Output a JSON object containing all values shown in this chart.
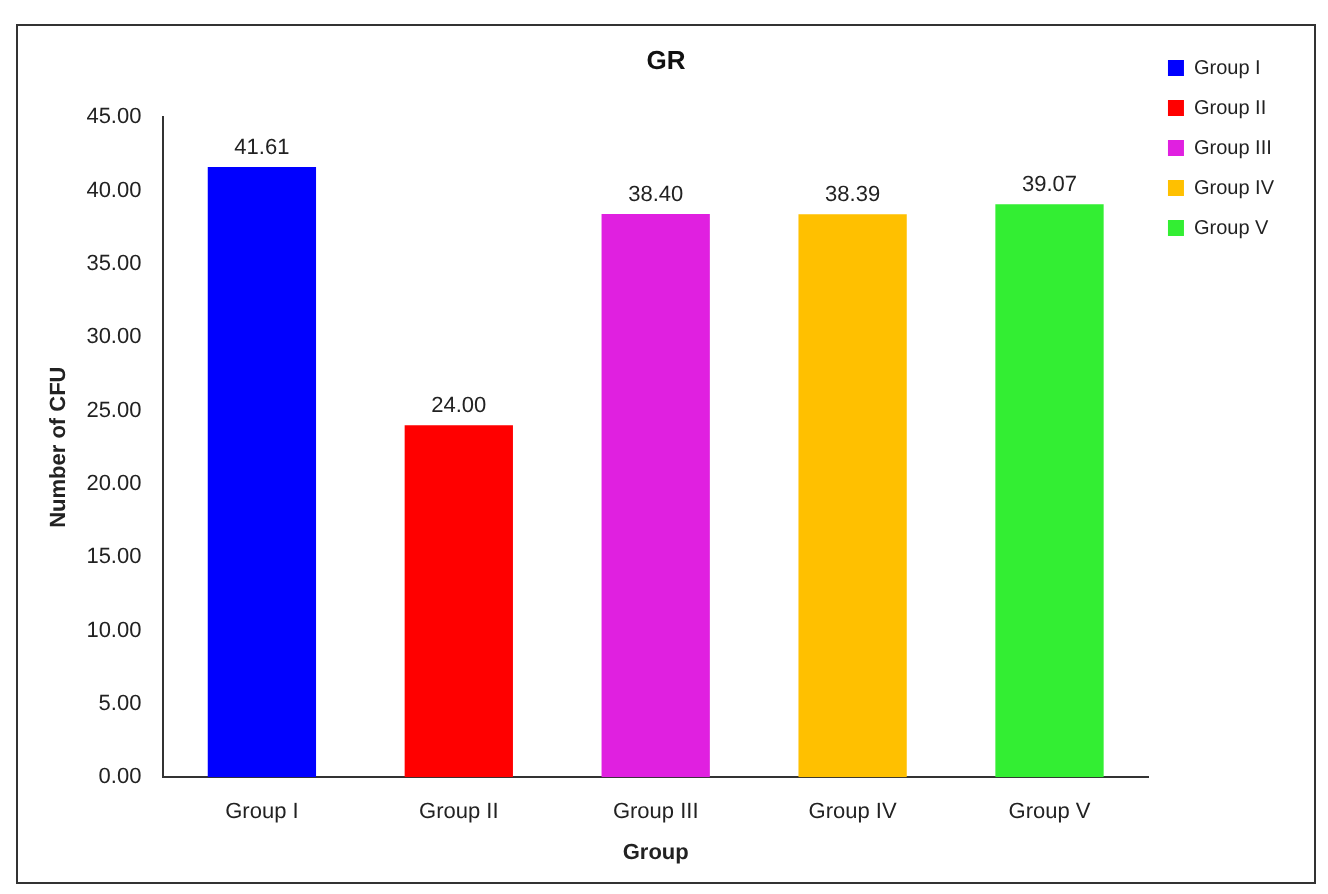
{
  "chart_data": {
    "type": "bar",
    "title": "GR",
    "xlabel": "Group",
    "ylabel": "Number of CFU",
    "categories": [
      "Group I",
      "Group II",
      "Group III",
      "Group IV",
      "Group V"
    ],
    "series": [
      {
        "name": "Group I",
        "color": "#0000ff",
        "values": [
          41.61,
          null,
          null,
          null,
          null
        ],
        "value_labels": [
          "41.61",
          null,
          null,
          null,
          null
        ]
      },
      {
        "name": "Group II",
        "color": "#ff0000",
        "values": [
          null,
          24.0,
          null,
          null,
          null
        ],
        "value_labels": [
          null,
          "24.00",
          null,
          null,
          null
        ]
      },
      {
        "name": "Group III",
        "color": "#e020e0",
        "values": [
          null,
          null,
          38.4,
          null,
          null
        ],
        "value_labels": [
          null,
          null,
          "38.40",
          null,
          null
        ]
      },
      {
        "name": "Group IV",
        "color": "#ffc000",
        "values": [
          null,
          null,
          null,
          38.39,
          null
        ],
        "value_labels": [
          null,
          null,
          null,
          "38.39",
          null
        ]
      },
      {
        "name": "Group V",
        "color": "#33ee33",
        "values": [
          null,
          null,
          null,
          null,
          39.07
        ],
        "value_labels": [
          null,
          null,
          null,
          null,
          "39.07"
        ]
      }
    ],
    "ylim": [
      0,
      45
    ],
    "yticks": [
      {
        "value": 0,
        "label": "0.00"
      },
      {
        "value": 5,
        "label": "5.00"
      },
      {
        "value": 10,
        "label": "10.00"
      },
      {
        "value": 15,
        "label": "15.00"
      },
      {
        "value": 20,
        "label": "20.00"
      },
      {
        "value": 25,
        "label": "25.00"
      },
      {
        "value": 30,
        "label": "30.00"
      },
      {
        "value": 35,
        "label": "35.00"
      },
      {
        "value": 40,
        "label": "40.00"
      },
      {
        "value": 45,
        "label": "45.00"
      }
    ],
    "grid": false,
    "legend": "top right"
  }
}
